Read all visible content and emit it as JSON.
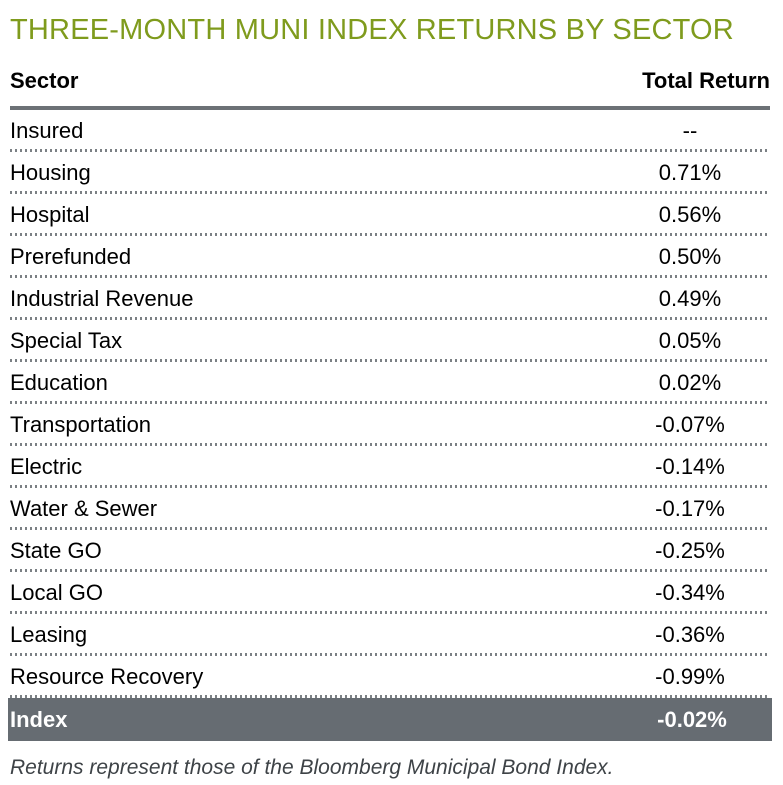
{
  "title": "THREE-MONTH MUNI INDEX RETURNS BY SECTOR",
  "table": {
    "columns": [
      "Sector",
      "Total Return"
    ],
    "rows": [
      {
        "sector": "Insured",
        "value": "--"
      },
      {
        "sector": "Housing",
        "value": "0.71%"
      },
      {
        "sector": "Hospital",
        "value": "0.56%"
      },
      {
        "sector": "Prerefunded",
        "value": "0.50%"
      },
      {
        "sector": "Industrial Revenue",
        "value": "0.49%"
      },
      {
        "sector": "Special Tax",
        "value": "0.05%"
      },
      {
        "sector": "Education",
        "value": "0.02%"
      },
      {
        "sector": "Transportation",
        "value": "-0.07%"
      },
      {
        "sector": "Electric",
        "value": "-0.14%"
      },
      {
        "sector": "Water & Sewer",
        "value": "-0.17%"
      },
      {
        "sector": "State GO",
        "value": "-0.25%"
      },
      {
        "sector": "Local GO",
        "value": "-0.34%"
      },
      {
        "sector": "Leasing",
        "value": "-0.36%"
      },
      {
        "sector": "Resource Recovery",
        "value": "-0.99%"
      }
    ],
    "index_row": {
      "sector": "Index",
      "value": "-0.02%"
    }
  },
  "footnote": "Returns represent those of the Bloomberg Municipal Bond Index.",
  "colors": {
    "title_green": "#7f9b1d",
    "header_rule": "#6c7176",
    "dotted_line": "#7b8084",
    "index_row_bg": "#666c72",
    "index_row_text": "#ffffff",
    "body_text": "#000000",
    "footnote_text": "#3e4347"
  },
  "chart_data": {
    "type": "table",
    "title": "THREE-MONTH MUNI INDEX RETURNS BY SECTOR",
    "columns": [
      "Sector",
      "Total Return"
    ],
    "categories": [
      "Insured",
      "Housing",
      "Hospital",
      "Prerefunded",
      "Industrial Revenue",
      "Special Tax",
      "Education",
      "Transportation",
      "Electric",
      "Water & Sewer",
      "State GO",
      "Local GO",
      "Leasing",
      "Resource Recovery",
      "Index"
    ],
    "values_pct": [
      null,
      0.71,
      0.56,
      0.5,
      0.49,
      0.05,
      0.02,
      -0.07,
      -0.14,
      -0.17,
      -0.25,
      -0.34,
      -0.36,
      -0.99,
      -0.02
    ],
    "footnote": "Returns represent those of the Bloomberg Municipal Bond Index."
  }
}
